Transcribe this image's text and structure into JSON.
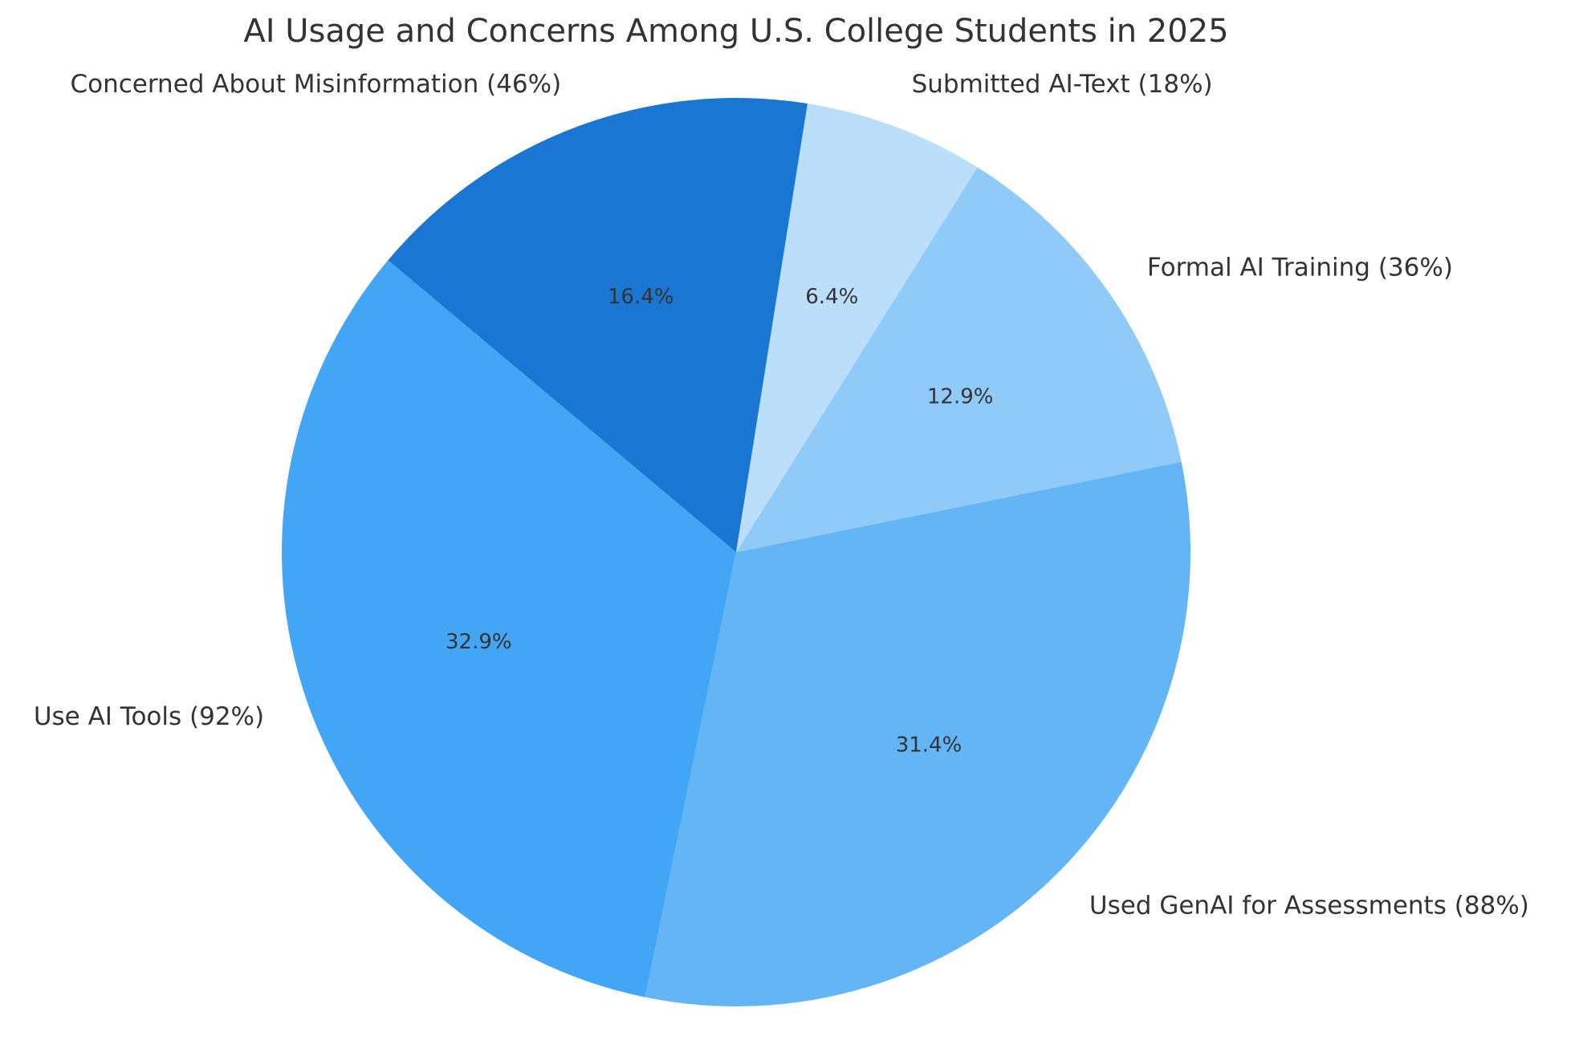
{
  "chart_data": {
    "type": "pie",
    "title": "AI Usage and Concerns Among U.S. College Students in 2025",
    "slices": [
      {
        "label": "Use AI Tools (92%)",
        "value": 32.9,
        "pct_text": "32.9%",
        "color": "#42A5F5"
      },
      {
        "label": "Used GenAI for Assessments (88%)",
        "value": 31.4,
        "pct_text": "31.4%",
        "color": "#64B5F6"
      },
      {
        "label": "Formal AI Training (36%)",
        "value": 12.9,
        "pct_text": "12.9%",
        "color": "#90CAF9"
      },
      {
        "label": "Submitted AI-Text (18%)",
        "value": 6.4,
        "pct_text": "6.4%",
        "color": "#BBDEFB"
      },
      {
        "label": "Concerned About Misinformation (46%)",
        "value": 16.4,
        "pct_text": "16.4%",
        "color": "#1976D2"
      }
    ],
    "start_angle_deg": 140,
    "direction": "counterclockwise",
    "legend": "none",
    "grid": false
  }
}
